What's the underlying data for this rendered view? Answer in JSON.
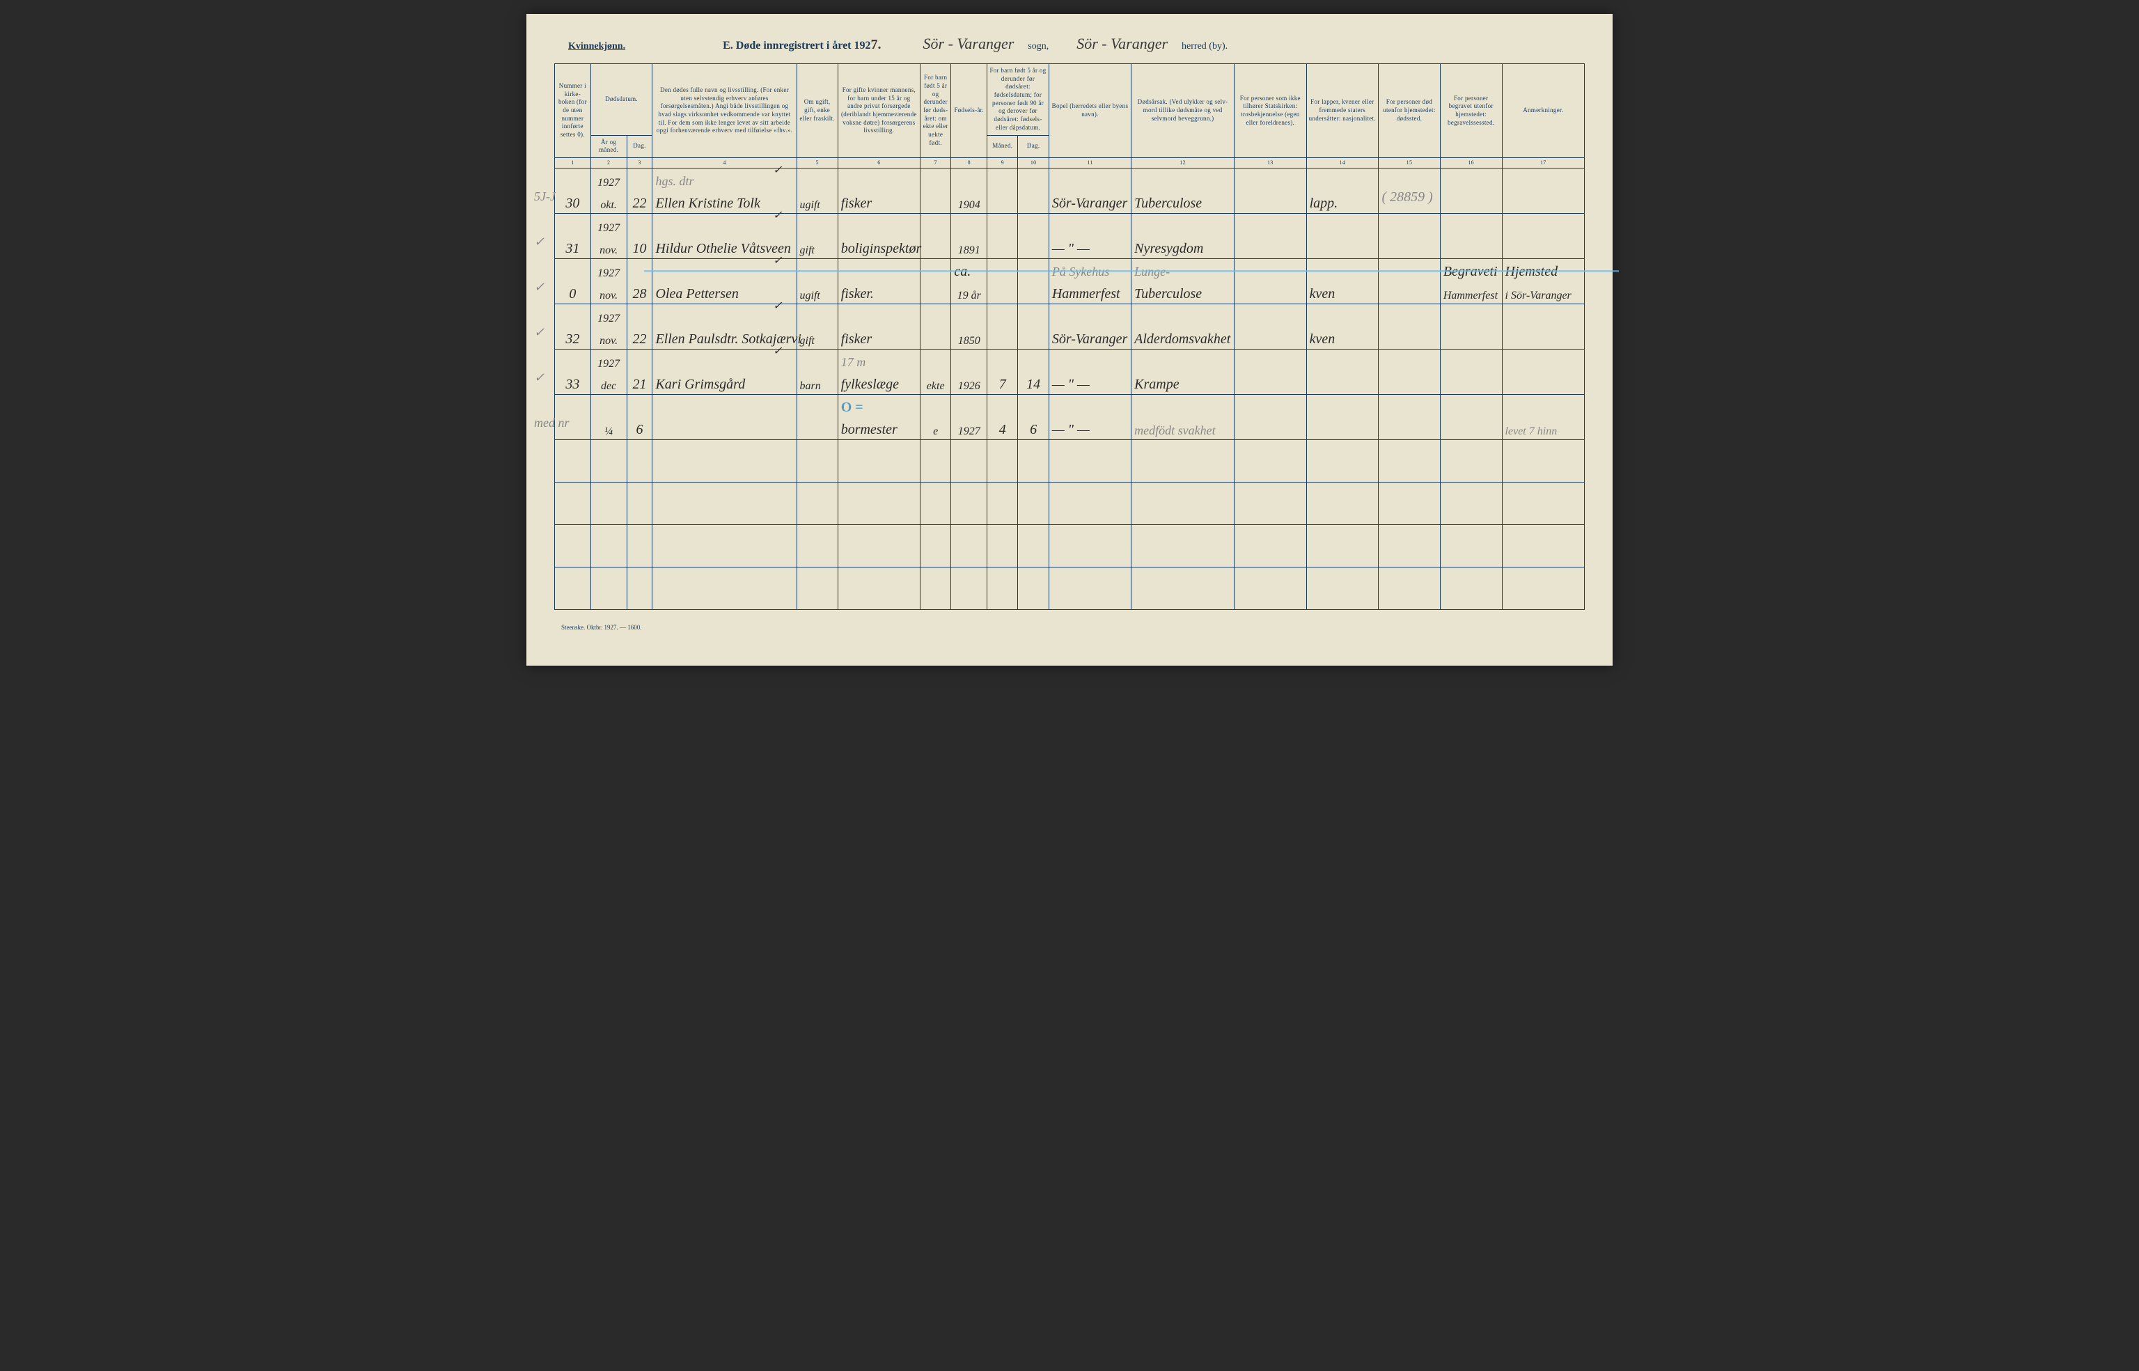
{
  "header": {
    "gender_label": "Kvinnekjønn.",
    "title_prefix": "E.  Døde innregistrert i året 192",
    "year_suffix": "7.",
    "sogn": "Sör - Varanger",
    "sogn_label": "sogn,",
    "herred": "Sör - Varanger",
    "herred_label": "herred (by)."
  },
  "columns": {
    "c1": "Nummer i kirke-boken (for de uten nummer innførte settes 0).",
    "c2_top": "Dødsdatum.",
    "c2a": "År og måned.",
    "c2b": "Dag.",
    "c3": "Den dødes fulle navn og livsstilling. (For enker uten selvstendig erhverv anføres forsørgelsesmåten.) Angi både livsstillingen og hvad slags virksomhet vedkommende var knyttet til. For dem som ikke lenger levet av sitt arbeide opgi forhenværende erhverv med tilføielse «fhv.».",
    "c4": "Om ugift, gift, enke eller fraskilt.",
    "c5": "For gifte kvinner mannens, for barn under 15 år og andre privat forsørgede (deriblandt hjemmeværende voksne døtre) forsørgerens livsstilling.",
    "c6": "For barn født 5 år og derunder før døds-året: om ekte eller uekte født.",
    "c7": "Fødsels-år.",
    "c8_top": "For barn født 5 år og derunder før dødsåret: fødselsdatum; for personer født 90 år og derover før dødsåret: fødsels- eller dåpsdatum.",
    "c8a": "Måned.",
    "c8b": "Dag.",
    "c9": "Bopel (herredets eller byens navn).",
    "c10": "Dødsårsak. (Ved ulykker og selv-mord tillike dødsmåte og ved selvmord beveggrunn.)",
    "c11": "For personer som ikke tilhører Statskirken: trosbekjennelse (egen eller foreldrenes).",
    "c12": "For lapper, kvener eller fremmede staters undersåtter: nasjonalitet.",
    "c13": "For personer død utenfor hjemstedet: dødssted.",
    "c14": "For personer begravet utenfor hjemstedet: begravelssessted.",
    "c15": "Anmerkninger."
  },
  "col_nums": [
    "1",
    "2",
    "3",
    "4",
    "5",
    "6",
    "7",
    "8",
    "9",
    "10",
    "11",
    "12",
    "13",
    "14",
    "15",
    "16",
    "17"
  ],
  "col_widths_pct": [
    3.5,
    3.5,
    2.5,
    14,
    4,
    8,
    3,
    3.5,
    3,
    3,
    8,
    10,
    7,
    7,
    6,
    6,
    8
  ],
  "rows": [
    {
      "margin": "5J-J",
      "num": "30",
      "year": "1927",
      "month": "okt.",
      "day": "22",
      "name_top": "hgs. dtr",
      "name": "Ellen Kristine Tolk",
      "check": "✓",
      "status": "ugift",
      "occupation": "fisker",
      "ekte": "",
      "birth_year": "1904",
      "birth_m": "",
      "birth_d": "",
      "residence": "Sör-Varanger",
      "cause": "Tuberculose",
      "faith": "",
      "nationality": "lapp.",
      "death_place": "",
      "burial_place": "",
      "remarks": "",
      "paren": "( 28859 )"
    },
    {
      "margin": "✓",
      "num": "31",
      "year": "1927",
      "month": "nov.",
      "day": "10",
      "name_top": "",
      "name": "Hildur Othelie Våtsveen",
      "check": "✓",
      "status": "gift",
      "occupation": "boliginspektør",
      "ekte": "",
      "birth_year": "1891",
      "birth_m": "",
      "birth_d": "",
      "residence": "— \" —",
      "cause": "Nyresygdom",
      "faith": "",
      "nationality": "",
      "death_place": "",
      "burial_place": "",
      "remarks": ""
    },
    {
      "margin": "✓",
      "num": "0",
      "year": "1927",
      "month": "nov.",
      "day": "28",
      "name_top": "",
      "name": "Olea Pettersen",
      "check": "✓",
      "status": "ugift",
      "occupation": "fisker.",
      "ekte": "",
      "birth_year_top": "ca.",
      "birth_year": "19 år",
      "birth_m": "",
      "birth_d": "",
      "residence_top": "På Sykehus",
      "residence": "Hammerfest",
      "cause_top": "Lunge-",
      "cause": "Tuberculose",
      "faith": "",
      "nationality": "kven",
      "death_place": "",
      "burial_place_top": "Begraveti",
      "burial_place": "Hammerfest",
      "remarks_top": "Hjemsted",
      "remarks": "i Sör-Varanger",
      "blue_line": true
    },
    {
      "margin": "✓",
      "num": "32",
      "year": "1927",
      "month": "nov.",
      "day": "22",
      "name_top": "",
      "name": "Ellen Paulsdtr. Sotkajærvi",
      "check": "✓",
      "status": "gift",
      "occupation": "fisker",
      "ekte": "",
      "birth_year": "1850",
      "birth_m": "",
      "birth_d": "",
      "residence": "Sör-Varanger",
      "cause": "Alderdomsvakhet",
      "faith": "",
      "nationality": "kven",
      "death_place": "",
      "burial_place": "",
      "remarks": ""
    },
    {
      "margin": "✓",
      "num": "33",
      "year": "1927",
      "month": "dec",
      "day": "21",
      "name_top": "",
      "name": "Kari Grimsgård",
      "check": "✓",
      "status": "barn",
      "occupation": "fylkeslæge",
      "occupation_top": "17 m",
      "ekte": "ekte",
      "birth_year": "1926",
      "birth_m": "7",
      "birth_d": "14",
      "residence": "— \" —",
      "cause": "Krampe",
      "faith": "",
      "nationality": "",
      "death_place": "",
      "burial_place": "",
      "remarks": ""
    },
    {
      "margin": "med nr",
      "num": "",
      "year": "",
      "month": "¼",
      "day": "6",
      "name_top": "",
      "name": "",
      "check": "",
      "status": "",
      "occupation": "bormester",
      "occupation_mark": "O =",
      "ekte": "e",
      "birth_year": "1927",
      "birth_m": "4",
      "birth_d": "6",
      "residence": "— \" —",
      "cause": "medfödt svakhet",
      "cause_pencil": true,
      "faith": "",
      "nationality": "",
      "death_place": "",
      "burial_place": "",
      "remarks": "levet 7 hinn",
      "remarks_pencil": true
    }
  ],
  "empty_rows": 4,
  "footer": "Steenske. Oktbr. 1927. — 1600.",
  "colors": {
    "page_bg": "#e8e4d0",
    "ink_blue": "#1a3a5c",
    "handwriting": "#2a2a2a",
    "pencil": "#888888",
    "blue_highlight": "#7ab8d8"
  }
}
